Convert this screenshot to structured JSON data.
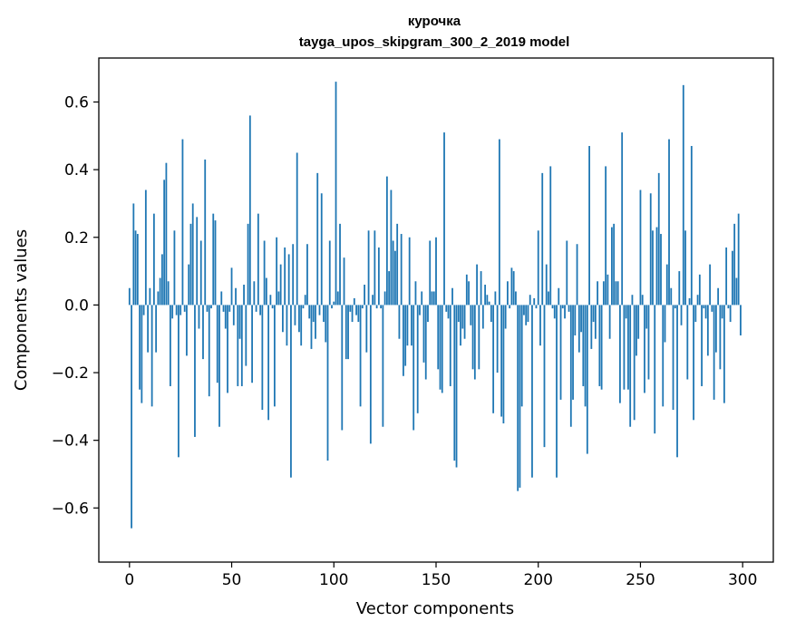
{
  "chart_data": {
    "type": "bar",
    "title_line1": "курочка",
    "title_line2": "tayga_upos_skipgram_300_2_2019 model",
    "xlabel": "Vector components",
    "ylabel": "Components values",
    "xlim": [
      -15,
      315
    ],
    "ylim": [
      -0.76,
      0.73
    ],
    "xticks": [
      0,
      50,
      100,
      150,
      200,
      250,
      300
    ],
    "xtick_labels": [
      "0",
      "50",
      "100",
      "150",
      "200",
      "250",
      "300"
    ],
    "yticks": [
      -0.6,
      -0.4,
      -0.2,
      0.0,
      0.2,
      0.4,
      0.6
    ],
    "ytick_labels": [
      "−0.6",
      "−0.4",
      "−0.2",
      "0.0",
      "0.2",
      "0.4",
      "0.6"
    ],
    "bar_color": "#1f77b4",
    "grid": false,
    "values": [
      0.05,
      -0.66,
      0.3,
      0.22,
      0.21,
      -0.25,
      -0.29,
      -0.03,
      0.34,
      -0.14,
      0.05,
      -0.3,
      0.27,
      -0.14,
      0.04,
      0.08,
      0.15,
      0.37,
      0.42,
      0.07,
      -0.24,
      -0.04,
      0.22,
      -0.03,
      -0.45,
      -0.03,
      0.49,
      -0.02,
      -0.15,
      0.12,
      0.24,
      0.3,
      -0.39,
      0.26,
      -0.07,
      0.19,
      -0.16,
      0.43,
      -0.02,
      -0.27,
      -0.01,
      0.27,
      0.25,
      -0.23,
      -0.36,
      0.04,
      -0.02,
      -0.07,
      -0.26,
      -0.02,
      0.11,
      -0.06,
      0.05,
      -0.24,
      -0.1,
      -0.24,
      0.06,
      -0.18,
      0.24,
      0.56,
      -0.23,
      0.07,
      -0.02,
      0.27,
      -0.03,
      -0.31,
      0.19,
      0.08,
      -0.34,
      0.03,
      -0.01,
      -0.3,
      0.2,
      0.04,
      0.12,
      -0.08,
      0.17,
      -0.12,
      0.15,
      -0.51,
      0.18,
      -0.06,
      0.45,
      -0.08,
      -0.12,
      -0.01,
      0.03,
      0.18,
      -0.04,
      -0.13,
      -0.05,
      -0.1,
      0.39,
      -0.03,
      0.33,
      -0.05,
      -0.11,
      -0.46,
      0.19,
      -0.01,
      0.01,
      0.66,
      0.04,
      0.24,
      -0.37,
      0.14,
      -0.16,
      -0.16,
      -0.02,
      -0.05,
      0.02,
      -0.03,
      -0.05,
      -0.3,
      -0.01,
      0.06,
      -0.14,
      0.22,
      -0.41,
      0.03,
      0.22,
      -0.01,
      0.17,
      -0.01,
      -0.36,
      0.04,
      0.38,
      0.1,
      0.34,
      0.19,
      0.16,
      0.24,
      -0.1,
      0.21,
      -0.21,
      -0.18,
      -0.12,
      0.2,
      -0.12,
      -0.37,
      0.07,
      -0.32,
      -0.03,
      0.04,
      -0.17,
      -0.22,
      -0.05,
      0.19,
      0.04,
      0.04,
      0.2,
      -0.19,
      -0.25,
      -0.26,
      0.51,
      -0.02,
      -0.04,
      -0.24,
      0.05,
      -0.46,
      -0.48,
      -0.05,
      -0.12,
      -0.07,
      -0.1,
      0.09,
      0.07,
      -0.06,
      -0.19,
      -0.22,
      0.12,
      -0.19,
      0.1,
      -0.07,
      0.06,
      0.03,
      0.01,
      -0.05,
      -0.32,
      0.04,
      -0.2,
      0.49,
      -0.33,
      -0.35,
      -0.07,
      0.07,
      -0.01,
      0.11,
      0.1,
      0.04,
      -0.55,
      -0.54,
      -0.3,
      -0.03,
      -0.06,
      -0.05,
      0.03,
      -0.51,
      0.02,
      -0.01,
      0.22,
      -0.12,
      0.39,
      -0.42,
      0.12,
      0.04,
      0.41,
      -0.01,
      -0.04,
      -0.51,
      0.05,
      -0.28,
      -0.01,
      -0.04,
      0.19,
      -0.02,
      -0.36,
      -0.28,
      -0.09,
      0.18,
      -0.14,
      -0.08,
      -0.24,
      -0.3,
      -0.44,
      0.47,
      -0.13,
      -0.05,
      -0.1,
      0.07,
      -0.24,
      -0.25,
      0.07,
      0.41,
      0.09,
      -0.1,
      0.23,
      0.24,
      0.07,
      0.07,
      -0.29,
      0.51,
      -0.25,
      -0.04,
      -0.25,
      -0.36,
      0.03,
      -0.34,
      -0.15,
      -0.1,
      0.34,
      0.03,
      -0.26,
      -0.07,
      -0.22,
      0.33,
      0.22,
      -0.38,
      0.23,
      0.39,
      0.21,
      -0.3,
      -0.11,
      0.12,
      0.49,
      0.05,
      -0.31,
      -0.01,
      -0.45,
      0.1,
      -0.06,
      0.65,
      0.22,
      -0.22,
      0.02,
      0.47,
      -0.34,
      -0.05,
      0.03,
      0.09,
      -0.24,
      -0.01,
      -0.04,
      -0.15,
      0.12,
      -0.02,
      -0.28,
      -0.14,
      0.05,
      -0.19,
      -0.04,
      -0.29,
      0.17,
      -0.01,
      -0.05,
      0.16,
      0.24,
      0.08,
      0.27,
      -0.09
    ]
  }
}
